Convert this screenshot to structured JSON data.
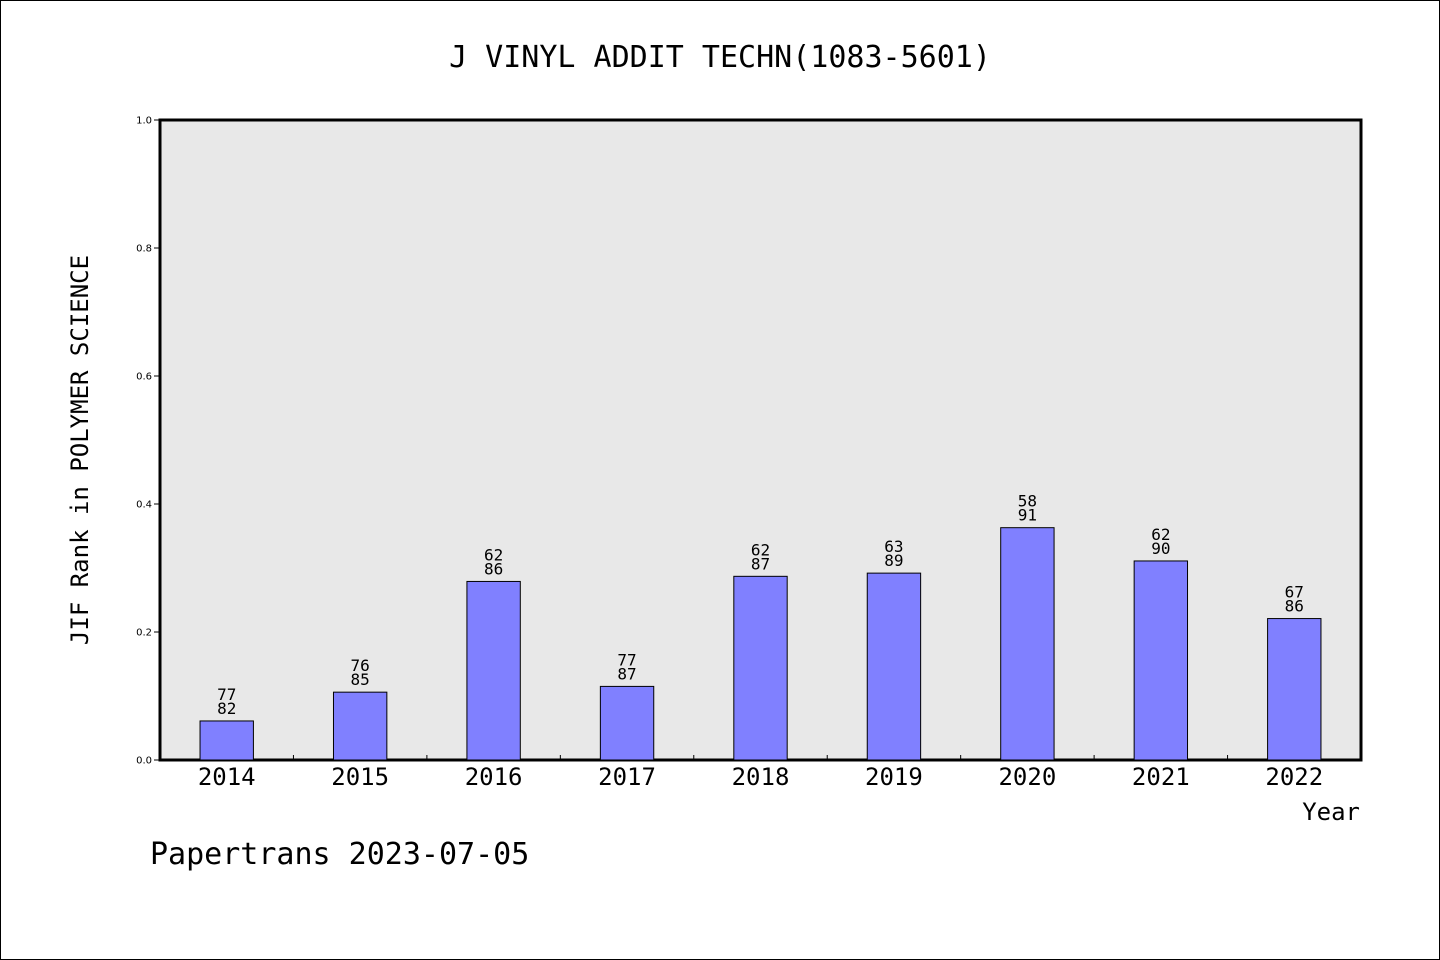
{
  "chart_data": {
    "type": "bar",
    "title": "J VINYL ADDIT TECHN(1083-5601)",
    "xlabel": "Year",
    "ylabel": "JIF Rank in POLYMER SCIENCE",
    "ylim": [
      0,
      1.0
    ],
    "yticks": [
      "0.0",
      "0.2",
      "0.4",
      "0.6",
      "0.8",
      "1.0"
    ],
    "categories": [
      "2014",
      "2015",
      "2016",
      "2017",
      "2018",
      "2019",
      "2020",
      "2021",
      "2022"
    ],
    "values": [
      0.061,
      0.106,
      0.279,
      0.115,
      0.287,
      0.292,
      0.363,
      0.311,
      0.221
    ],
    "label_top": [
      "77",
      "76",
      "62",
      "77",
      "62",
      "63",
      "58",
      "62",
      "67"
    ],
    "label_bottom": [
      "82",
      "85",
      "86",
      "87",
      "87",
      "89",
      "91",
      "90",
      "86"
    ],
    "grid": false,
    "legend": "none",
    "colors": {
      "bar": "#8080ff",
      "plot_background": "#e8e8e8"
    }
  },
  "footer": "Papertrans 2023-07-05"
}
